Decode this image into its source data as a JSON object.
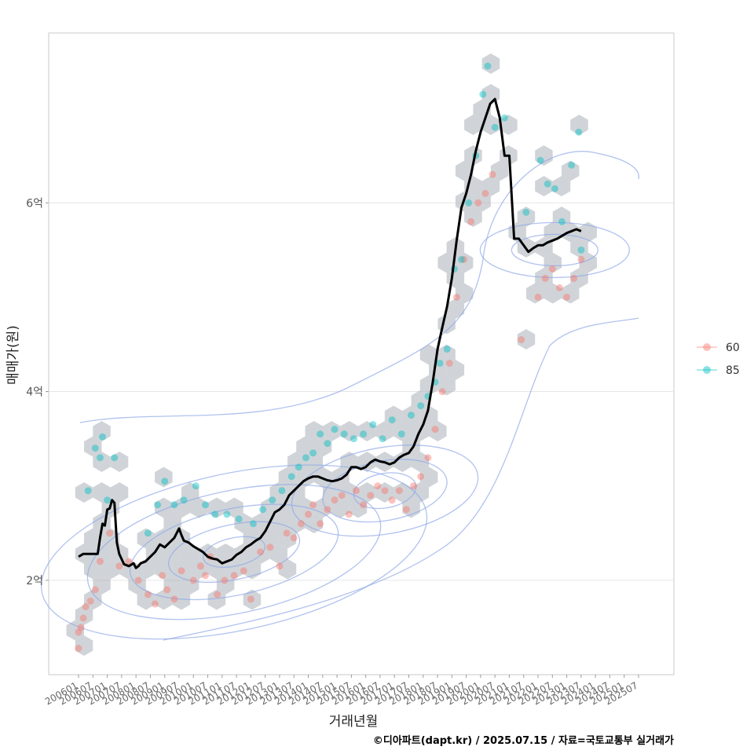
{
  "chart_data": {
    "type": "line",
    "xlabel": "거래년월",
    "ylabel": "매매가(원)",
    "caption": "©디아파트(dapt.kr) / 2025.07.15 / 자료=국토교통부 실거래가",
    "x_range": [
      "2006-01",
      "2025-07"
    ],
    "ylim": [
      1.0,
      7.8
    ],
    "y_unit": "억",
    "y_ticks": [
      {
        "value": 2,
        "label": "2억"
      },
      {
        "value": 4,
        "label": "4억"
      },
      {
        "value": 6,
        "label": "6억"
      }
    ],
    "x_tick_labels": [
      "200601",
      "200607",
      "200701",
      "200707",
      "200801",
      "200807",
      "200901",
      "200907",
      "201001",
      "201007",
      "201101",
      "201107",
      "201201",
      "201207",
      "201301",
      "201307",
      "201401",
      "201407",
      "201501",
      "201507",
      "201601",
      "201607",
      "201701",
      "201707",
      "201801",
      "201807",
      "201901",
      "201907",
      "202001",
      "202007",
      "202101",
      "202107",
      "202201",
      "202207",
      "202301",
      "202307",
      "202401",
      "202407",
      "202501",
      "202507"
    ],
    "grid": true,
    "legend_position": "right",
    "legend": [
      {
        "label": "60",
        "color": "#F8766D"
      },
      {
        "label": "85",
        "color": "#00BFC4"
      }
    ],
    "colors": {
      "trend_line": "#000000",
      "hexbin": "#A9B0B8",
      "contour": "#8FA8E8"
    },
    "trend_series": {
      "name": "",
      "points": [
        [
          "2006-01",
          2.25
        ],
        [
          "2006-03",
          2.28
        ],
        [
          "2006-06",
          2.28
        ],
        [
          "2006-09",
          2.28
        ],
        [
          "2006-10",
          2.45
        ],
        [
          "2006-11",
          2.6
        ],
        [
          "2006-12",
          2.58
        ],
        [
          "2007-01",
          2.75
        ],
        [
          "2007-02",
          2.76
        ],
        [
          "2007-03",
          2.85
        ],
        [
          "2007-04",
          2.82
        ],
        [
          "2007-05",
          2.4
        ],
        [
          "2007-06",
          2.28
        ],
        [
          "2007-08",
          2.17
        ],
        [
          "2007-10",
          2.15
        ],
        [
          "2007-12",
          2.18
        ],
        [
          "2008-01",
          2.13
        ],
        [
          "2008-02",
          2.15
        ],
        [
          "2008-03",
          2.18
        ],
        [
          "2008-05",
          2.2
        ],
        [
          "2008-07",
          2.25
        ],
        [
          "2008-09",
          2.3
        ],
        [
          "2008-11",
          2.38
        ],
        [
          "2009-01",
          2.35
        ],
        [
          "2009-03",
          2.4
        ],
        [
          "2009-05",
          2.45
        ],
        [
          "2009-07",
          2.55
        ],
        [
          "2009-08",
          2.48
        ],
        [
          "2009-09",
          2.42
        ],
        [
          "2009-11",
          2.4
        ],
        [
          "2010-01",
          2.36
        ],
        [
          "2010-03",
          2.33
        ],
        [
          "2010-05",
          2.3
        ],
        [
          "2010-07",
          2.25
        ],
        [
          "2010-09",
          2.23
        ],
        [
          "2010-11",
          2.22
        ],
        [
          "2011-01",
          2.18
        ],
        [
          "2011-03",
          2.2
        ],
        [
          "2011-05",
          2.22
        ],
        [
          "2011-07",
          2.27
        ],
        [
          "2011-09",
          2.3
        ],
        [
          "2011-11",
          2.35
        ],
        [
          "2012-01",
          2.38
        ],
        [
          "2012-03",
          2.42
        ],
        [
          "2012-05",
          2.45
        ],
        [
          "2012-07",
          2.52
        ],
        [
          "2012-09",
          2.62
        ],
        [
          "2012-11",
          2.72
        ],
        [
          "2013-01",
          2.75
        ],
        [
          "2013-03",
          2.8
        ],
        [
          "2013-05",
          2.9
        ],
        [
          "2013-07",
          2.95
        ],
        [
          "2013-09",
          3.0
        ],
        [
          "2013-11",
          3.05
        ],
        [
          "2014-01",
          3.08
        ],
        [
          "2014-03",
          3.1
        ],
        [
          "2014-05",
          3.1
        ],
        [
          "2014-07",
          3.08
        ],
        [
          "2014-09",
          3.06
        ],
        [
          "2014-11",
          3.05
        ],
        [
          "2015-01",
          3.06
        ],
        [
          "2015-03",
          3.08
        ],
        [
          "2015-05",
          3.12
        ],
        [
          "2015-07",
          3.2
        ],
        [
          "2015-09",
          3.2
        ],
        [
          "2015-11",
          3.18
        ],
        [
          "2016-01",
          3.2
        ],
        [
          "2016-03",
          3.25
        ],
        [
          "2016-05",
          3.28
        ],
        [
          "2016-07",
          3.26
        ],
        [
          "2016-09",
          3.25
        ],
        [
          "2016-11",
          3.23
        ],
        [
          "2017-01",
          3.25
        ],
        [
          "2017-03",
          3.3
        ],
        [
          "2017-05",
          3.33
        ],
        [
          "2017-07",
          3.35
        ],
        [
          "2017-09",
          3.42
        ],
        [
          "2017-11",
          3.55
        ],
        [
          "2018-01",
          3.65
        ],
        [
          "2018-03",
          3.8
        ],
        [
          "2018-05",
          4.1
        ],
        [
          "2018-07",
          4.45
        ],
        [
          "2018-09",
          4.68
        ],
        [
          "2018-11",
          4.9
        ],
        [
          "2019-01",
          5.2
        ],
        [
          "2019-03",
          5.6
        ],
        [
          "2019-05",
          5.95
        ],
        [
          "2019-07",
          6.1
        ],
        [
          "2019-09",
          6.3
        ],
        [
          "2019-11",
          6.55
        ],
        [
          "2020-01",
          6.75
        ],
        [
          "2020-03",
          6.9
        ],
        [
          "2020-05",
          7.05
        ],
        [
          "2020-07",
          7.1
        ],
        [
          "2020-09",
          6.9
        ],
        [
          "2020-11",
          6.5
        ],
        [
          "2021-01",
          6.5
        ],
        [
          "2021-03",
          5.62
        ],
        [
          "2021-05",
          5.62
        ],
        [
          "2021-07",
          5.55
        ],
        [
          "2021-09",
          5.48
        ],
        [
          "2021-11",
          5.52
        ],
        [
          "2022-01",
          5.55
        ],
        [
          "2022-03",
          5.55
        ],
        [
          "2022-05",
          5.58
        ],
        [
          "2022-07",
          5.6
        ],
        [
          "2022-09",
          5.62
        ],
        [
          "2022-11",
          5.65
        ],
        [
          "2023-01",
          5.68
        ],
        [
          "2023-03",
          5.7
        ],
        [
          "2023-05",
          5.72
        ],
        [
          "2023-07",
          5.7
        ]
      ]
    },
    "scatter_series": [
      {
        "name": "60",
        "points": [
          [
            "2006-01",
            1.28
          ],
          [
            "2006-01",
            1.45
          ],
          [
            "2006-02",
            1.5
          ],
          [
            "2006-03",
            1.6
          ],
          [
            "2006-04",
            1.72
          ],
          [
            "2006-06",
            1.78
          ],
          [
            "2006-08",
            1.9
          ],
          [
            "2006-10",
            2.2
          ],
          [
            "2007-02",
            2.5
          ],
          [
            "2007-06",
            2.15
          ],
          [
            "2007-10",
            2.2
          ],
          [
            "2008-02",
            2.0
          ],
          [
            "2008-06",
            1.85
          ],
          [
            "2008-09",
            1.75
          ],
          [
            "2008-12",
            2.05
          ],
          [
            "2009-02",
            1.9
          ],
          [
            "2009-05",
            1.8
          ],
          [
            "2009-08",
            2.1
          ],
          [
            "2010-01",
            2.0
          ],
          [
            "2010-04",
            2.15
          ],
          [
            "2010-06",
            2.05
          ],
          [
            "2010-08",
            2.25
          ],
          [
            "2010-11",
            1.85
          ],
          [
            "2011-02",
            2.0
          ],
          [
            "2011-06",
            2.05
          ],
          [
            "2011-10",
            2.1
          ],
          [
            "2012-01",
            1.8
          ],
          [
            "2012-05",
            2.3
          ],
          [
            "2012-09",
            2.35
          ],
          [
            "2013-01",
            2.15
          ],
          [
            "2013-04",
            2.5
          ],
          [
            "2013-07",
            2.45
          ],
          [
            "2013-10",
            2.6
          ],
          [
            "2014-01",
            2.7
          ],
          [
            "2014-03",
            2.8
          ],
          [
            "2014-06",
            2.6
          ],
          [
            "2014-09",
            2.75
          ],
          [
            "2014-12",
            2.85
          ],
          [
            "2015-03",
            2.9
          ],
          [
            "2015-06",
            2.7
          ],
          [
            "2015-09",
            2.95
          ],
          [
            "2015-12",
            2.8
          ],
          [
            "2016-03",
            2.9
          ],
          [
            "2016-06",
            3.0
          ],
          [
            "2016-09",
            2.95
          ],
          [
            "2016-12",
            2.85
          ],
          [
            "2017-03",
            2.95
          ],
          [
            "2017-06",
            2.75
          ],
          [
            "2017-09",
            3.0
          ],
          [
            "2017-12",
            3.1
          ],
          [
            "2018-03",
            3.3
          ],
          [
            "2018-06",
            3.6
          ],
          [
            "2018-09",
            4.0
          ],
          [
            "2018-12",
            4.3
          ],
          [
            "2019-03",
            5.0
          ],
          [
            "2019-06",
            5.4
          ],
          [
            "2019-09",
            5.8
          ],
          [
            "2019-12",
            6.0
          ],
          [
            "2020-03",
            6.1
          ],
          [
            "2020-06",
            6.3
          ],
          [
            "2021-06",
            4.55
          ],
          [
            "2022-01",
            5.0
          ],
          [
            "2022-04",
            5.2
          ],
          [
            "2022-07",
            5.3
          ],
          [
            "2022-10",
            5.1
          ],
          [
            "2023-01",
            5.0
          ],
          [
            "2023-04",
            5.2
          ],
          [
            "2023-07",
            5.4
          ]
        ]
      },
      {
        "name": "85",
        "points": [
          [
            "2006-05",
            2.95
          ],
          [
            "2006-08",
            3.4
          ],
          [
            "2006-10",
            3.3
          ],
          [
            "2006-11",
            3.52
          ],
          [
            "2007-01",
            2.85
          ],
          [
            "2007-04",
            3.3
          ],
          [
            "2008-06",
            2.5
          ],
          [
            "2008-10",
            2.8
          ],
          [
            "2009-01",
            3.05
          ],
          [
            "2009-05",
            2.8
          ],
          [
            "2009-09",
            2.85
          ],
          [
            "2010-02",
            3.0
          ],
          [
            "2010-06",
            2.8
          ],
          [
            "2010-10",
            2.7
          ],
          [
            "2011-03",
            2.7
          ],
          [
            "2011-08",
            2.65
          ],
          [
            "2012-02",
            2.6
          ],
          [
            "2012-06",
            2.75
          ],
          [
            "2012-10",
            2.85
          ],
          [
            "2013-02",
            2.95
          ],
          [
            "2013-06",
            3.1
          ],
          [
            "2013-09",
            3.2
          ],
          [
            "2013-12",
            3.3
          ],
          [
            "2014-03",
            3.35
          ],
          [
            "2014-06",
            3.55
          ],
          [
            "2014-09",
            3.45
          ],
          [
            "2014-12",
            3.6
          ],
          [
            "2015-04",
            3.55
          ],
          [
            "2015-08",
            3.5
          ],
          [
            "2015-12",
            3.55
          ],
          [
            "2016-04",
            3.65
          ],
          [
            "2016-08",
            3.5
          ],
          [
            "2016-12",
            3.7
          ],
          [
            "2017-04",
            3.55
          ],
          [
            "2017-08",
            3.75
          ],
          [
            "2017-12",
            3.85
          ],
          [
            "2018-03",
            3.95
          ],
          [
            "2018-06",
            4.1
          ],
          [
            "2018-08",
            4.3
          ],
          [
            "2018-11",
            4.45
          ],
          [
            "2019-02",
            5.3
          ],
          [
            "2019-05",
            5.4
          ],
          [
            "2019-08",
            6.0
          ],
          [
            "2019-11",
            6.5
          ],
          [
            "2020-02",
            7.15
          ],
          [
            "2020-04",
            7.45
          ],
          [
            "2020-07",
            6.8
          ],
          [
            "2020-11",
            6.9
          ],
          [
            "2021-08",
            5.9
          ],
          [
            "2022-02",
            6.45
          ],
          [
            "2022-05",
            6.2
          ],
          [
            "2022-08",
            6.15
          ],
          [
            "2022-11",
            5.8
          ],
          [
            "2023-03",
            6.4
          ],
          [
            "2023-06",
            6.75
          ],
          [
            "2023-07",
            5.5
          ]
        ]
      }
    ]
  }
}
